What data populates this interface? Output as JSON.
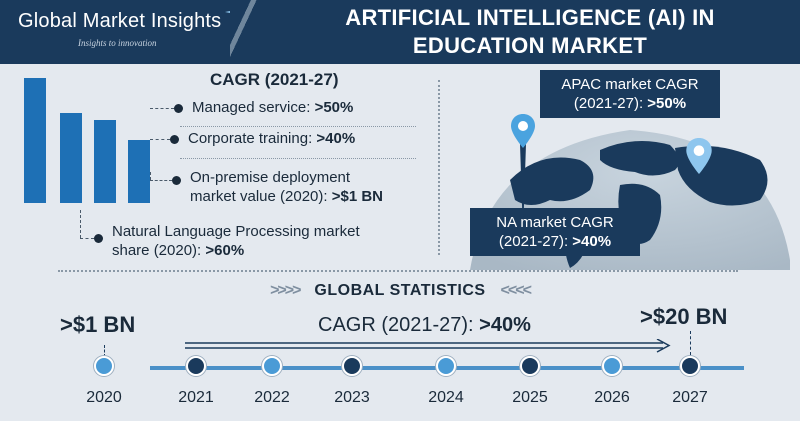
{
  "brand": {
    "name": "Global Market Insights",
    "tagline": "Insights to innovation"
  },
  "title": {
    "line1": "ARTIFICIAL INTELLIGENCE (AI) IN",
    "line2": "EDUCATION MARKET"
  },
  "cagr_panel": {
    "heading": "CAGR (2021-27)",
    "bar_levels": [
      1.0,
      0.72,
      0.66,
      0.5
    ],
    "bar_color": "#1e70b5",
    "items": [
      {
        "label": "Managed service: ",
        "value": ">50%"
      },
      {
        "label": "Corporate training: ",
        "value": ">40%"
      }
    ],
    "deployment": {
      "line1": "On-premise deployment",
      "line2": "market value (2020): ",
      "value": ">$1 BN"
    },
    "nlp": {
      "line1": "Natural Language Processing market",
      "line2": "share (2020): ",
      "value": ">60%"
    }
  },
  "map": {
    "apac": {
      "line1": "APAC market CAGR",
      "line2": "(2021-27): ",
      "value": ">50%"
    },
    "na": {
      "line1": "NA market CAGR",
      "line2": "(2021-27): ",
      "value": ">40%"
    }
  },
  "global_stats": {
    "heading": "GLOBAL STATISTICS",
    "chevrons_left": ">>>>",
    "chevrons_right": "<<<<",
    "start_value": ">$1 BN",
    "end_value": ">$20 BN",
    "cagr_label": "CAGR (2021-27): ",
    "cagr_value": ">40%",
    "years": [
      "2020",
      "2021",
      "2022",
      "2023",
      "2024",
      "2025",
      "2026",
      "2027"
    ],
    "colors": {
      "timeline": "#4a90c8",
      "dark_node": "#1a3a5c",
      "light_node": "#4a9bd6"
    }
  }
}
